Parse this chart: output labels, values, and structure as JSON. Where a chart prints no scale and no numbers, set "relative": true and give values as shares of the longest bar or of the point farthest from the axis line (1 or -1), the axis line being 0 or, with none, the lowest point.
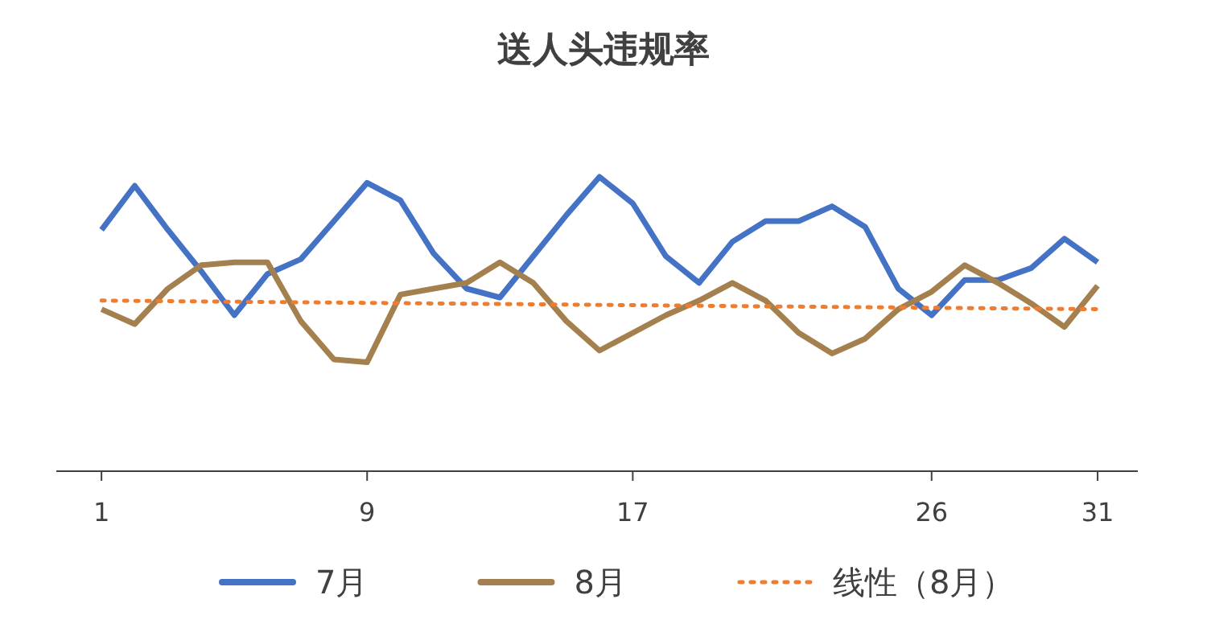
{
  "chart_data": {
    "type": "line",
    "title": "送人头违规率",
    "relative": true,
    "legend": "bottom",
    "x": [
      1,
      2,
      3,
      4,
      5,
      6,
      7,
      8,
      9,
      10,
      11,
      12,
      13,
      14,
      15,
      16,
      17,
      18,
      19,
      20,
      21,
      22,
      23,
      24,
      25,
      26,
      27,
      28,
      29,
      30,
      31
    ],
    "xlim": [
      -0.36,
      32.21
    ],
    "xticks": [
      1,
      9,
      17,
      26,
      31
    ],
    "series": [
      {
        "name": "7月",
        "color": "#4472c4",
        "values": [
          0.82,
          0.97,
          0.82,
          0.68,
          0.53,
          0.67,
          0.72,
          0.85,
          0.98,
          0.92,
          0.74,
          0.62,
          0.59,
          0.73,
          0.87,
          1,
          0.91,
          0.73,
          0.64,
          0.78,
          0.85,
          0.85,
          0.9,
          0.83,
          0.62,
          0.53,
          0.65,
          0.65,
          0.69,
          0.79,
          0.71
        ]
      },
      {
        "name": "8月",
        "color": "#a5804f",
        "values": [
          0.55,
          0.5,
          0.62,
          0.7,
          0.71,
          0.71,
          0.51,
          0.38,
          0.37,
          0.6,
          0.62,
          0.64,
          0.71,
          0.64,
          0.51,
          0.41,
          0.47,
          0.53,
          0.58,
          0.64,
          0.58,
          0.47,
          0.4,
          0.45,
          0.55,
          0.61,
          0.7,
          0.64,
          0.57,
          0.49,
          0.63
        ]
      },
      {
        "name": "线性（8月）",
        "type": "line",
        "line_style": "dotted",
        "color": "#ed7d31",
        "x": [
          1,
          31
        ],
        "values": [
          0.58,
          0.55
        ]
      }
    ]
  }
}
